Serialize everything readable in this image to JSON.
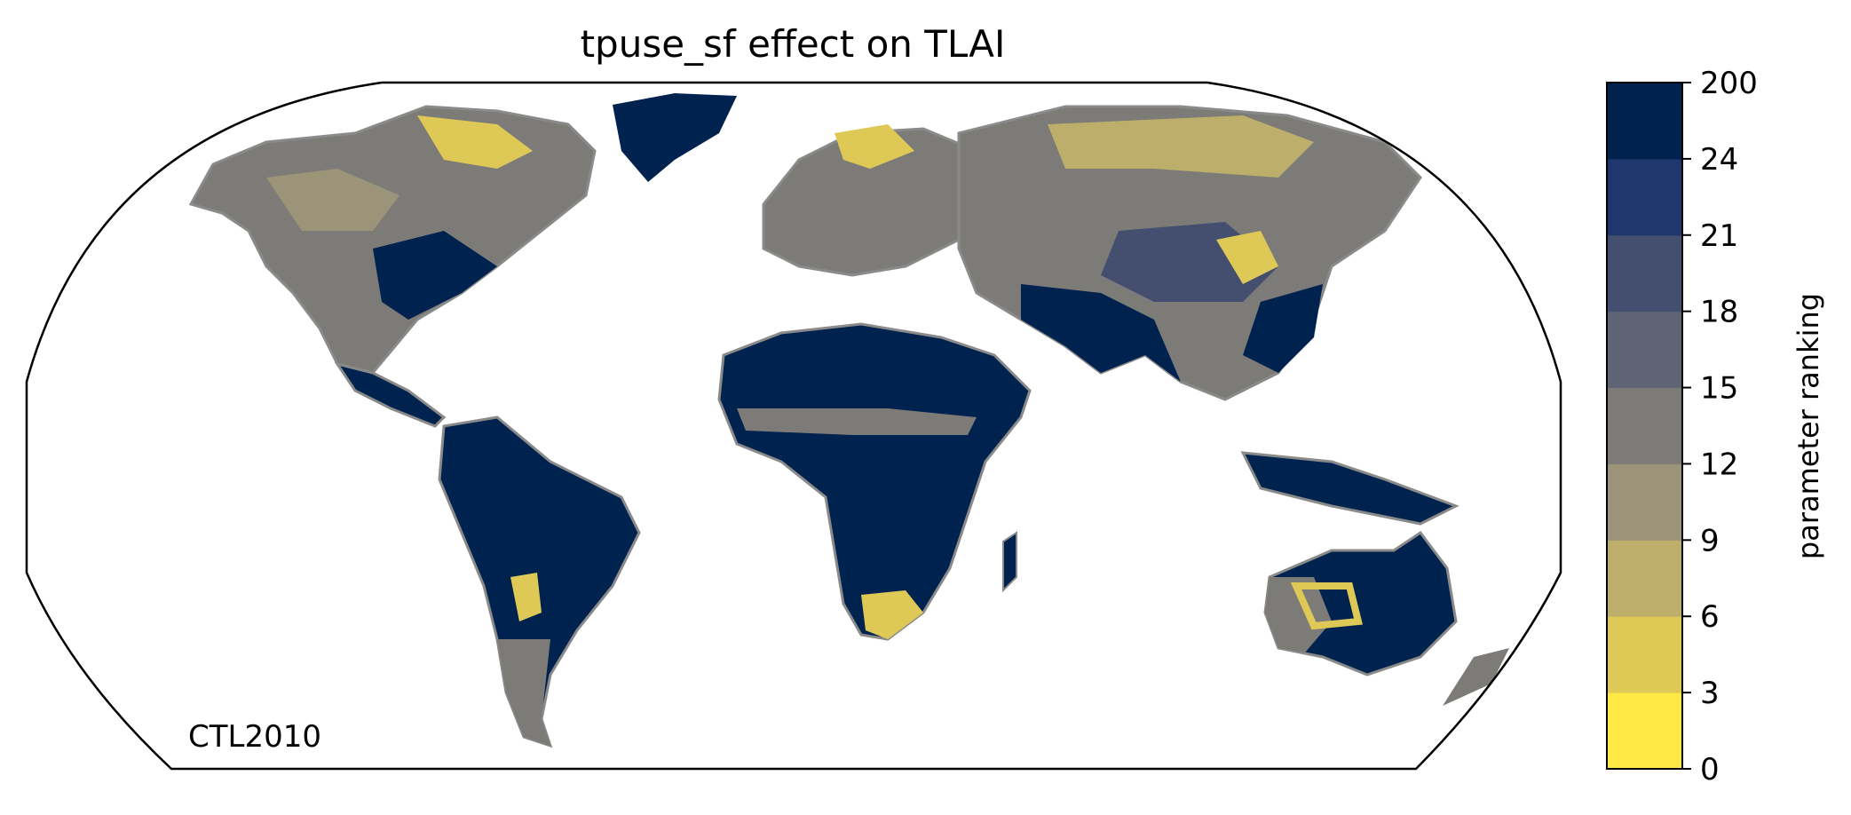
{
  "map": {
    "title": "tpuse_sf effect on TLAI",
    "projection": "Robinson (global)",
    "run_label": "CTL2010",
    "coastline_color": "#8a8a8a",
    "ocean_color": "#ffffff",
    "dominant_land_value_color": "#002050"
  },
  "colorbar": {
    "label": "parameter ranking",
    "bounds": [
      "0",
      "3",
      "6",
      "9",
      "12",
      "15",
      "18",
      "21",
      "24",
      "200"
    ],
    "colors": [
      "#ffe945",
      "#dfc956",
      "#bdae6c",
      "#9b9478",
      "#7c7b78",
      "#5f6475",
      "#444f6f",
      "#1f376c",
      "#00224e"
    ]
  }
}
